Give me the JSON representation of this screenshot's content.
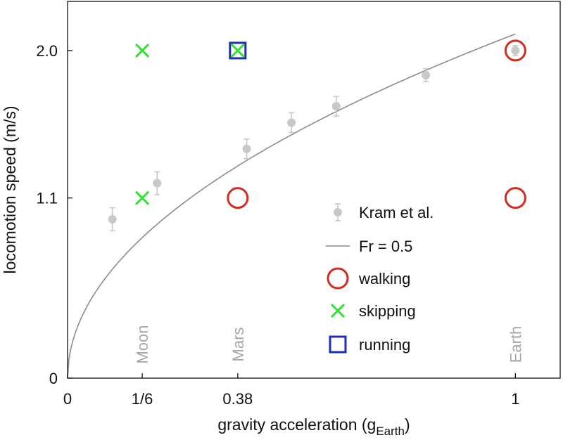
{
  "chart_data": {
    "type": "scatter",
    "xlabel_main": "gravity acceleration (g",
    "xlabel_sub": "Earth",
    "xlabel_end": ")",
    "ylabel": "locomotion speed (m/s)",
    "xlim": [
      0,
      1.1
    ],
    "ylim": [
      0,
      2.3
    ],
    "x_ticks": [
      0,
      0.1667,
      0.38,
      1
    ],
    "x_tick_labels": [
      "0",
      "1/6",
      "0.38",
      "1"
    ],
    "y_ticks": [
      0,
      1.1,
      2.0
    ],
    "y_tick_labels": [
      "0",
      "1.1",
      "2.0"
    ],
    "planets": [
      {
        "label": "Moon",
        "x": 0.1667
      },
      {
        "label": "Mars",
        "x": 0.38
      },
      {
        "label": "Earth",
        "x": 1.0
      }
    ],
    "series": [
      {
        "name": "Kram et al.",
        "marker": "dot-errorbar",
        "color": "#c8c8c8",
        "points": [
          {
            "x": 0.1,
            "y": 0.97,
            "err": 0.07
          },
          {
            "x": 0.2,
            "y": 1.19,
            "err": 0.07
          },
          {
            "x": 0.4,
            "y": 1.4,
            "err": 0.06
          },
          {
            "x": 0.5,
            "y": 1.56,
            "err": 0.06
          },
          {
            "x": 0.6,
            "y": 1.66,
            "err": 0.06
          },
          {
            "x": 0.8,
            "y": 1.85,
            "err": 0.04
          },
          {
            "x": 1.0,
            "y": 2.0,
            "err": 0.03
          }
        ]
      },
      {
        "name": "Fr = 0.5",
        "marker": "line",
        "color": "#8c8c8c",
        "formula": "sqrt(0.5 * 9.81 * g * leg_length)",
        "leg_length_m": 0.9
      },
      {
        "name": "walking",
        "marker": "circle",
        "color": "#d42a20",
        "points": [
          {
            "x": 0.38,
            "y": 1.1
          },
          {
            "x": 1.0,
            "y": 2.0
          },
          {
            "x": 1.0,
            "y": 1.1
          }
        ]
      },
      {
        "name": "skipping",
        "marker": "cross",
        "color": "#33e133",
        "points": [
          {
            "x": 0.1667,
            "y": 2.0
          },
          {
            "x": 0.1667,
            "y": 1.1
          },
          {
            "x": 0.38,
            "y": 2.0
          }
        ]
      },
      {
        "name": "running",
        "marker": "square",
        "color": "#1c2db8",
        "points": [
          {
            "x": 0.38,
            "y": 2.0
          }
        ]
      }
    ],
    "legend_position": "lower-right"
  }
}
